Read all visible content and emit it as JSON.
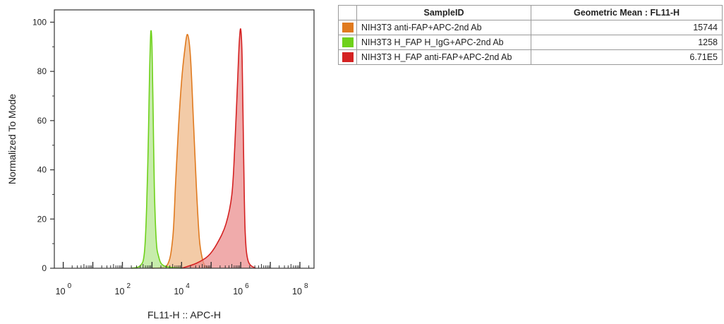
{
  "chart_data": {
    "type": "area",
    "title": "",
    "xlabel": "FL11-H :: APC-H",
    "ylabel": "Normalized To Mode",
    "x_scale": "log10",
    "xlim": [
      0.5,
      300000000
    ],
    "ylim": [
      0,
      105
    ],
    "yticks": [
      "0",
      "20",
      "40",
      "60",
      "80",
      "100"
    ],
    "xticks": [
      {
        "base": "10",
        "exp": "0"
      },
      {
        "base": "10",
        "exp": "2"
      },
      {
        "base": "10",
        "exp": "4"
      },
      {
        "base": "10",
        "exp": "6"
      },
      {
        "base": "10",
        "exp": "8"
      }
    ],
    "series": [
      {
        "name": "NIH3T3 anti-FAP+APC-2nd Ab",
        "color": "#e07a1f",
        "fill": "#efb98a",
        "points": [
          [
            1000,
            0
          ],
          [
            3162,
            1
          ],
          [
            5012,
            12
          ],
          [
            6310,
            35
          ],
          [
            7943,
            58
          ],
          [
            10000,
            76
          ],
          [
            12589,
            88
          ],
          [
            15849,
            95
          ],
          [
            19953,
            86
          ],
          [
            25119,
            60
          ],
          [
            31623,
            33
          ],
          [
            39811,
            12
          ],
          [
            50119,
            4
          ],
          [
            63096,
            1
          ],
          [
            100000,
            0
          ]
        ]
      },
      {
        "name": "NIH3T3 H_FAP H_IgG+APC-2nd Ab",
        "color": "#6ed11a",
        "fill": "#b4e68f",
        "points": [
          [
            200,
            0
          ],
          [
            398,
            1
          ],
          [
            550,
            6
          ],
          [
            661,
            25
          ],
          [
            760,
            55
          ],
          [
            832,
            80
          ],
          [
            912,
            96
          ],
          [
            1000,
            90
          ],
          [
            1096,
            62
          ],
          [
            1202,
            33
          ],
          [
            1380,
            12
          ],
          [
            1660,
            5
          ],
          [
            2512,
            1
          ],
          [
            10000,
            0
          ]
        ]
      },
      {
        "name": "NIH3T3 H_FAP anti-FAP+APC-2nd Ab",
        "color": "#d42222",
        "fill": "#eb8f8f",
        "points": [
          [
            10000,
            0
          ],
          [
            31623,
            2
          ],
          [
            79433,
            5
          ],
          [
            158489,
            10
          ],
          [
            316228,
            18
          ],
          [
            501187,
            30
          ],
          [
            630957,
            50
          ],
          [
            794328,
            78
          ],
          [
            891251,
            92
          ],
          [
            1000000,
            97
          ],
          [
            1122018,
            84
          ],
          [
            1258925,
            45
          ],
          [
            1412538,
            15
          ],
          [
            1778279,
            3
          ],
          [
            3162278,
            0
          ]
        ]
      }
    ]
  },
  "legend_table": {
    "headers": [
      "SampleID",
      "Geometric Mean : FL11-H"
    ],
    "rows": [
      {
        "label": "NIH3T3 anti-FAP+APC-2nd Ab",
        "value": "15744",
        "color": "#e07a1f"
      },
      {
        "label": "NIH3T3 H_FAP H_IgG+APC-2nd Ab",
        "value": "1258",
        "color": "#6ed11a"
      },
      {
        "label": "NIH3T3 H_FAP anti-FAP+APC-2nd Ab",
        "value": "6.71E5",
        "color": "#d42222"
      }
    ]
  }
}
